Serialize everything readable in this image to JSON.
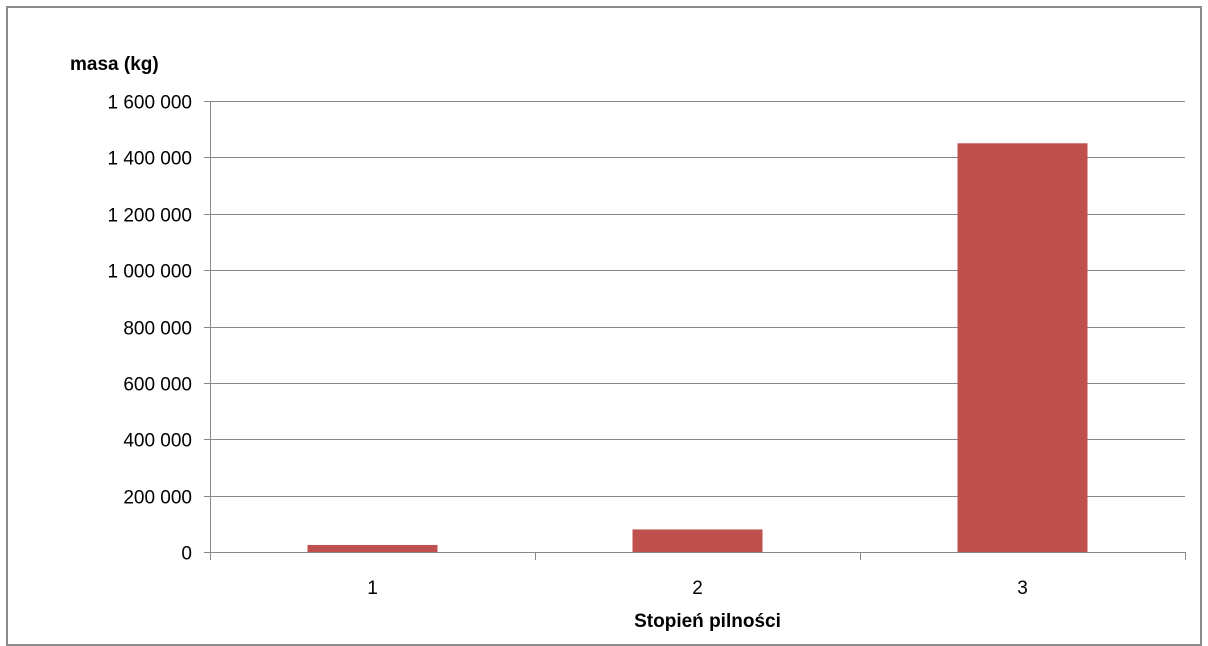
{
  "chart_data": {
    "type": "bar",
    "categories": [
      "1",
      "2",
      "3"
    ],
    "values": [
      25000,
      80000,
      1450000
    ],
    "ylabel": "masa (kg)",
    "xlabel": "Stopień pilności",
    "ylim": [
      0,
      1600000
    ],
    "yticks": [
      0,
      200000,
      400000,
      600000,
      800000,
      1000000,
      1200000,
      1400000,
      1600000
    ],
    "ytick_labels": [
      "0",
      "200 000",
      "400 000",
      "600 000",
      "800 000",
      "1 000 000",
      "1 200 000",
      "1 400 000",
      "1 600 000"
    ],
    "grid": "horizontal",
    "legend": "none",
    "colors": {
      "bar": "#c0504d",
      "grid": "#878787",
      "axis": "#878787",
      "border": "#8c8c8c"
    }
  }
}
